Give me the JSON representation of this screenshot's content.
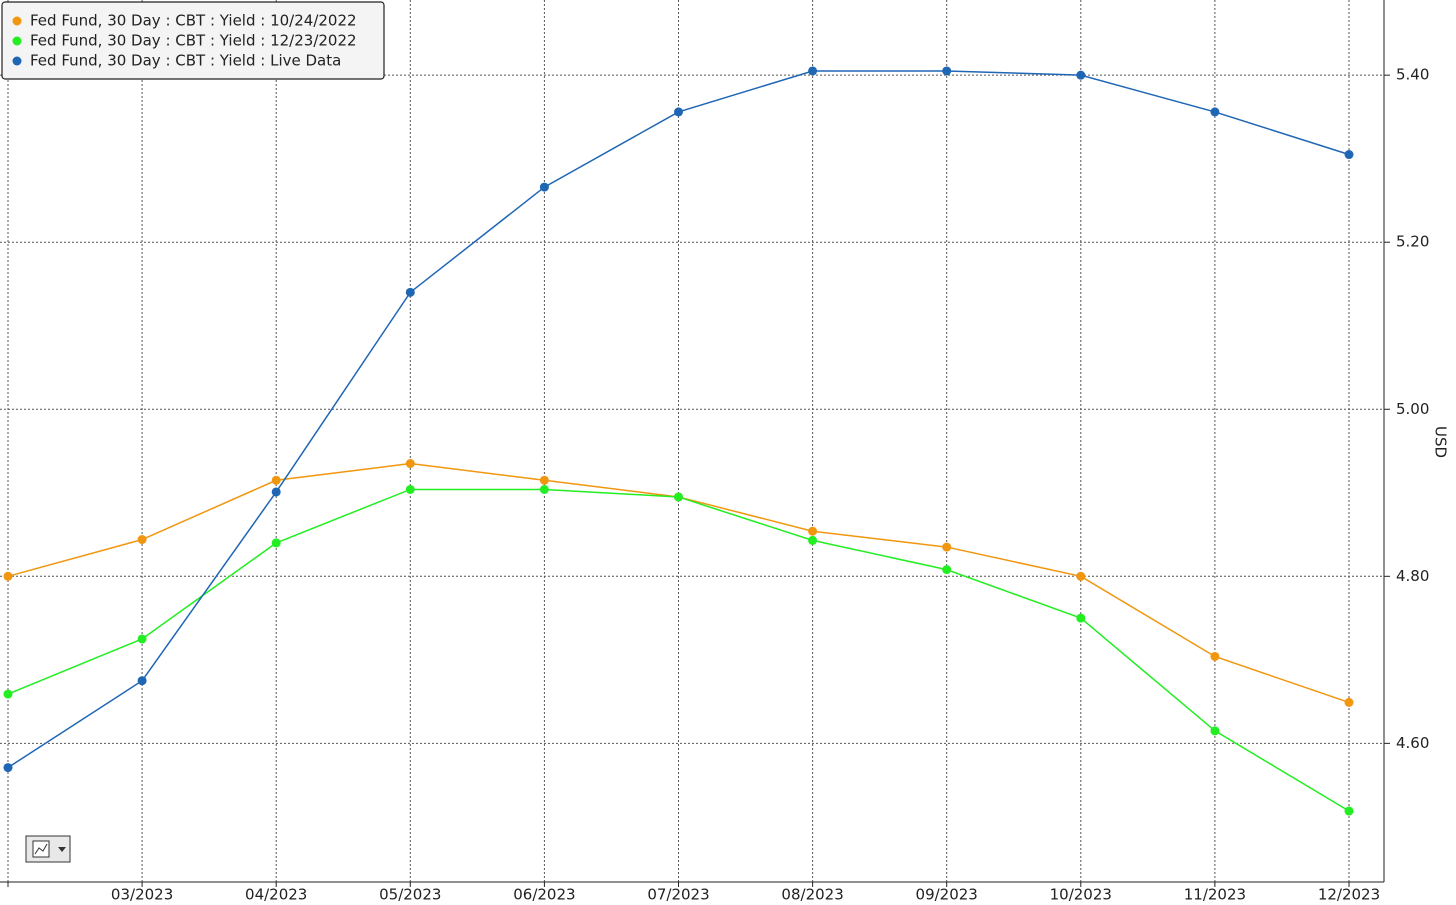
{
  "chart_data": {
    "type": "line",
    "y_label": "USD",
    "categories": [
      null,
      "03/2023",
      "04/2023",
      "05/2023",
      "06/2023",
      "07/2023",
      "08/2023",
      "09/2023",
      "10/2023",
      "11/2023",
      "12/2023"
    ],
    "series": [
      {
        "name": "Fed Fund, 30 Day : CBT : Yield : 10/24/2022",
        "color": "#f0960f",
        "values": [
          4.8,
          4.844,
          4.915,
          4.935,
          4.915,
          4.895,
          4.854,
          4.835,
          4.8,
          4.704,
          4.649
        ]
      },
      {
        "name": "Fed Fund, 30 Day : CBT : Yield : 12/23/2022",
        "color": "#22ee22",
        "values": [
          4.659,
          4.725,
          4.84,
          4.904,
          4.904,
          4.895,
          4.843,
          4.808,
          4.75,
          4.615,
          4.519
        ]
      },
      {
        "name": "Fed Fund, 30 Day : CBT : Yield : Live Data",
        "color": "#1f66b5",
        "values": [
          4.571,
          4.675,
          4.901,
          5.14,
          5.266,
          5.356,
          5.405,
          5.405,
          5.4,
          5.356,
          5.305
        ]
      }
    ],
    "ylim": [
      4.434,
      5.49
    ],
    "yticks": [
      {
        "value": 4.6,
        "label": "4.60"
      },
      {
        "value": 4.8,
        "label": "4.80"
      },
      {
        "value": 5.0,
        "label": "5.00"
      },
      {
        "value": 5.2,
        "label": "5.20"
      },
      {
        "value": 5.4,
        "label": "5.40"
      }
    ],
    "grid": true,
    "legend": "top-left"
  }
}
